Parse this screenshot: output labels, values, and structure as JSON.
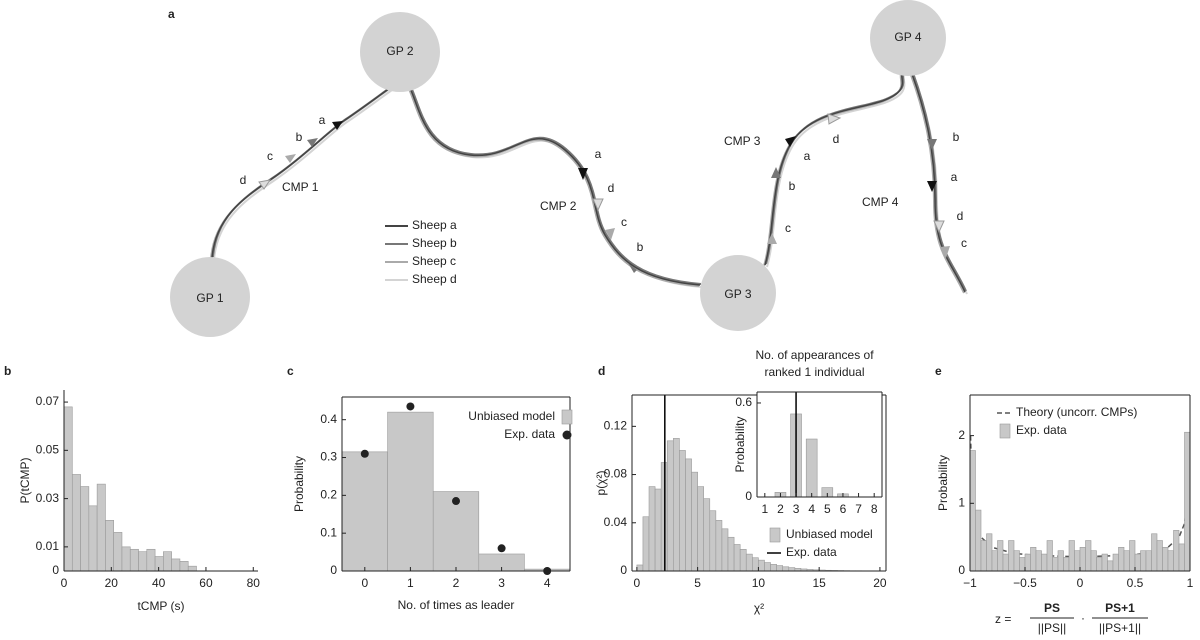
{
  "panel_a": {
    "panel_label": "a",
    "nodes": [
      {
        "label": "GP 1"
      },
      {
        "label": "GP 2"
      },
      {
        "label": "GP 3"
      },
      {
        "label": "GP 4"
      }
    ],
    "cmps": [
      {
        "label": "CMP 1",
        "sheep": [
          "d",
          "c",
          "b",
          "a"
        ]
      },
      {
        "label": "CMP 2",
        "sheep": [
          "a",
          "d",
          "c",
          "b"
        ]
      },
      {
        "label": "CMP 3",
        "sheep": [
          "c",
          "b",
          "a",
          "d"
        ]
      },
      {
        "label": "CMP 4",
        "sheep": [
          "b",
          "a",
          "d",
          "c"
        ]
      }
    ],
    "legend": [
      "Sheep a",
      "Sheep b",
      "Sheep c",
      "Sheep d"
    ]
  },
  "chart_data": [
    {
      "type": "histogram",
      "panel_label": "b",
      "xlabel": "tCMP (s)",
      "ylabel": "P(tCMP)",
      "bins": [
        0,
        3.5,
        7,
        10.5,
        14,
        17.5,
        21,
        24.5,
        28,
        31.5,
        35,
        38.5,
        42,
        45.5,
        49,
        52.5,
        56
      ],
      "values": [
        0.068,
        0.04,
        0.035,
        0.027,
        0.036,
        0.021,
        0.016,
        0.01,
        0.009,
        0.008,
        0.009,
        0.006,
        0.008,
        0.005,
        0.004,
        0.002
      ],
      "color": "#c8c8c8",
      "xlim": [
        0,
        82
      ],
      "ylim": [
        0,
        0.075
      ],
      "xticks": [
        0,
        20,
        40,
        60,
        80
      ],
      "yticks": [
        0,
        0.01,
        0.03,
        0.05,
        0.07
      ]
    },
    {
      "type": "bar",
      "panel_label": "c",
      "xlabel": "No. of times as leader",
      "ylabel": "Probability",
      "categories": [
        "0",
        "1",
        "2",
        "3",
        "4"
      ],
      "series": [
        {
          "name": "Unbiased model",
          "style": "bar",
          "color": "#c8c8c8",
          "values": [
            0.315,
            0.42,
            0.21,
            0.045,
            0.005
          ]
        },
        {
          "name": "Exp. data",
          "style": "dot",
          "color": "#222",
          "values": [
            0.31,
            0.435,
            0.185,
            0.06,
            0
          ]
        }
      ],
      "ylim": [
        0,
        0.46
      ],
      "yticks": [
        0,
        0.1,
        0.2,
        0.3,
        0.4
      ]
    },
    {
      "type": "histogram",
      "panel_label": "d",
      "xlabel": "χ²",
      "ylabel": "p(χ²)",
      "bins": [
        0,
        0.5,
        1,
        1.5,
        2,
        2.5,
        3,
        3.5,
        4,
        4.5,
        5,
        5.5,
        6,
        6.5,
        7,
        7.5,
        8,
        8.5,
        9,
        9.5,
        10,
        10.5,
        11,
        11.5,
        12,
        12.5,
        13,
        13.5,
        14,
        14.5,
        15,
        15.5,
        16,
        16.5,
        17,
        17.5,
        18,
        18.5,
        19,
        19.5,
        20
      ],
      "series": [
        {
          "name": "Unbiased model",
          "style": "bar",
          "color": "#c8c8c8",
          "values": [
            0.005,
            0.045,
            0.07,
            0.068,
            0.09,
            0.108,
            0.11,
            0.1,
            0.093,
            0.082,
            0.07,
            0.06,
            0.05,
            0.042,
            0.035,
            0.028,
            0.022,
            0.018,
            0.014,
            0.011,
            0.009,
            0.007,
            0.0055,
            0.0045,
            0.0035,
            0.0028,
            0.0022,
            0.0017,
            0.0013,
            0.001,
            0.0008,
            0.0006,
            0.0005,
            0.0004,
            0.0003,
            0.0002,
            0.0002,
            0.0001,
            0.0001,
            0.0001
          ]
        }
      ],
      "vlines": [
        {
          "name": "Exp. data",
          "x": 2.3,
          "color": "#000"
        }
      ],
      "xlim": [
        -0.4,
        20.5
      ],
      "ylim": [
        0,
        0.146
      ],
      "xticks": [
        0,
        5,
        10,
        15,
        20
      ],
      "yticks": [
        0,
        0.04,
        0.08,
        0.12
      ]
    },
    {
      "type": "bar",
      "title_lines": [
        "No. of appearances of",
        "ranked 1 individual"
      ],
      "ylabel": "Probability",
      "x": [
        1,
        2,
        3,
        4,
        5,
        6,
        7,
        8
      ],
      "series": [
        {
          "style": "bar",
          "color": "#c8c8c8",
          "values": [
            0,
            0.03,
            0.53,
            0.37,
            0.06,
            0.02,
            0,
            0
          ]
        }
      ],
      "vlines": [
        {
          "x": 3,
          "color": "#000"
        }
      ],
      "xlim": [
        0.5,
        8.5
      ],
      "ylim": [
        0,
        0.67
      ],
      "xticks": [
        1,
        2,
        3,
        4,
        5,
        6,
        7,
        8
      ],
      "yticks": [
        0,
        0.6
      ]
    },
    {
      "type": "histogram",
      "panel_label": "e",
      "ylabel": "Probability",
      "xlabel": {
        "lhs": "z =",
        "num1": "PS",
        "den1": "||PS||",
        "dot": "·",
        "num2": "PS+1",
        "den2": "||PS+1||"
      },
      "bins": [
        -1,
        -0.95,
        -0.9,
        -0.85,
        -0.8,
        -0.75,
        -0.7,
        -0.65,
        -0.6,
        -0.55,
        -0.5,
        -0.45,
        -0.4,
        -0.35,
        -0.3,
        -0.25,
        -0.2,
        -0.15,
        -0.1,
        -0.05,
        0,
        0.05,
        0.1,
        0.15,
        0.2,
        0.25,
        0.3,
        0.35,
        0.4,
        0.45,
        0.5,
        0.55,
        0.6,
        0.65,
        0.7,
        0.75,
        0.8,
        0.85,
        0.9,
        0.95,
        1
      ],
      "series": [
        {
          "name": "Theory (uncorr. CMPs)",
          "style": "line",
          "dash": true,
          "color": "#555",
          "x": [
            -0.995,
            -0.98,
            -0.95,
            -0.9,
            -0.8,
            -0.6,
            -0.4,
            -0.2,
            0,
            0.2,
            0.4,
            0.6,
            0.8,
            0.9,
            0.95,
            0.98,
            0.995
          ],
          "values": [
            2.0,
            1.1,
            0.7,
            0.5,
            0.35,
            0.26,
            0.23,
            0.22,
            0.21,
            0.22,
            0.23,
            0.26,
            0.35,
            0.5,
            0.7,
            1.1,
            2.0
          ]
        },
        {
          "name": "Exp. data",
          "style": "bar",
          "color": "#c8c8c8",
          "values": [
            1.78,
            0.9,
            0.45,
            0.55,
            0.3,
            0.45,
            0.25,
            0.45,
            0.3,
            0.2,
            0.25,
            0.35,
            0.3,
            0.25,
            0.45,
            0.2,
            0.3,
            0.2,
            0.45,
            0.3,
            0.35,
            0.45,
            0.3,
            0.2,
            0.25,
            0.15,
            0.25,
            0.35,
            0.3,
            0.45,
            0.25,
            0.3,
            0.3,
            0.55,
            0.45,
            0.35,
            0.3,
            0.6,
            0.4,
            2.05
          ]
        }
      ],
      "xlim": [
        -1,
        1
      ],
      "ylim": [
        0,
        2.6
      ],
      "xticks": [
        {
          "value": -1,
          "label": "−1"
        },
        {
          "value": -0.5,
          "label": "−0.5"
        },
        0,
        0.5,
        1
      ],
      "yticks": [
        0,
        1,
        2
      ]
    }
  ]
}
